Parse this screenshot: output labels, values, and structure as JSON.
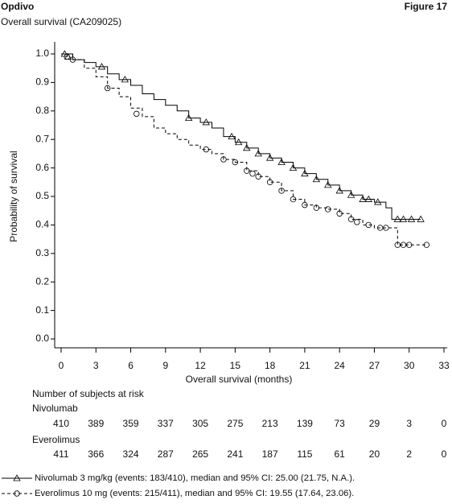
{
  "chart_data": {
    "type": "step",
    "title": "Opdivo",
    "figure_label": "Figure 17",
    "subtitle": "Overall survival (CA209025)",
    "x_label": "Overall survival (months)",
    "y_label": "Probability of survival",
    "xlim": [
      0,
      33
    ],
    "ylim": [
      0,
      1
    ],
    "xticks": [
      0,
      3,
      6,
      9,
      12,
      15,
      18,
      21,
      24,
      27,
      30,
      33
    ],
    "yticks": [
      {
        "value": 0,
        "label": "0.0"
      },
      0.1,
      0.2,
      0.3,
      0.4,
      0.5,
      0.6,
      0.7,
      0.8,
      0.9,
      {
        "value": 1,
        "label": "1.0"
      }
    ],
    "series": [
      {
        "name": "Nivolumab 3 mg/kg (events: 183/410), median and 95% CI: 25.00 (21.75, N.A.).",
        "color": "#000000",
        "dash": "none",
        "marker": "triangle",
        "x": [
          0,
          1,
          2,
          3,
          4,
          5,
          6,
          7,
          8,
          9,
          10,
          11,
          12,
          13,
          14,
          15,
          16,
          17,
          18,
          19,
          20,
          21,
          22,
          23,
          24,
          25,
          26,
          27,
          28,
          28.5,
          31
        ],
        "values": [
          1.0,
          0.98,
          0.97,
          0.955,
          0.93,
          0.91,
          0.89,
          0.86,
          0.84,
          0.82,
          0.8,
          0.775,
          0.76,
          0.74,
          0.71,
          0.69,
          0.67,
          0.65,
          0.635,
          0.62,
          0.6,
          0.58,
          0.56,
          0.54,
          0.52,
          0.505,
          0.49,
          0.48,
          0.46,
          0.42,
          0.42
        ],
        "censor_x": [
          0.3,
          0.6,
          3.5,
          5.5,
          11,
          12.5,
          14.7,
          15.3,
          16,
          17,
          18,
          19,
          20,
          21,
          22,
          23,
          24,
          25,
          26,
          26.5,
          27.3,
          29,
          29.5,
          30.2,
          31
        ],
        "censor_values": [
          1.0,
          0.99,
          0.955,
          0.91,
          0.775,
          0.76,
          0.71,
          0.69,
          0.67,
          0.65,
          0.635,
          0.62,
          0.6,
          0.58,
          0.56,
          0.54,
          0.52,
          0.505,
          0.49,
          0.49,
          0.48,
          0.42,
          0.42,
          0.42,
          0.42
        ]
      },
      {
        "name": "Everolimus 10 mg (events: 215/411), median and 95% CI: 19.55 (17.64, 23.06).",
        "color": "#000000",
        "dash": "4,3",
        "marker": "circle",
        "x": [
          0,
          1,
          2,
          3,
          4,
          5,
          6,
          7,
          8,
          9,
          10,
          11,
          12,
          13,
          14,
          15,
          16,
          17,
          18,
          19,
          20,
          21,
          22,
          23,
          24,
          25,
          26,
          27,
          28,
          29,
          31.5
        ],
        "values": [
          1.0,
          0.98,
          0.95,
          0.92,
          0.88,
          0.85,
          0.81,
          0.78,
          0.74,
          0.72,
          0.7,
          0.68,
          0.665,
          0.65,
          0.63,
          0.62,
          0.59,
          0.57,
          0.55,
          0.52,
          0.49,
          0.47,
          0.46,
          0.455,
          0.44,
          0.42,
          0.4,
          0.39,
          0.39,
          0.33,
          0.33
        ],
        "censor_x": [
          0.5,
          1,
          4,
          6.5,
          12.5,
          14,
          15,
          16,
          16.5,
          17,
          18,
          19,
          20,
          21,
          22,
          23,
          24,
          25,
          25.5,
          26.5,
          27.5,
          28,
          29,
          29.5,
          30,
          31.5
        ],
        "censor_values": [
          0.99,
          0.98,
          0.88,
          0.79,
          0.665,
          0.63,
          0.62,
          0.59,
          0.58,
          0.57,
          0.55,
          0.52,
          0.49,
          0.47,
          0.46,
          0.455,
          0.44,
          0.42,
          0.41,
          0.4,
          0.39,
          0.39,
          0.33,
          0.33,
          0.33,
          0.33
        ]
      }
    ],
    "risk_table": {
      "title": "Number of subjects at risk",
      "x": [
        0,
        3,
        6,
        9,
        12,
        15,
        18,
        21,
        24,
        27,
        30,
        33
      ],
      "rows": [
        {
          "name": "Nivolumab",
          "values": [
            410,
            389,
            359,
            337,
            305,
            275,
            213,
            139,
            73,
            29,
            3,
            0
          ]
        },
        {
          "name": "Everolimus",
          "values": [
            411,
            366,
            324,
            287,
            265,
            241,
            187,
            115,
            61,
            20,
            2,
            0
          ]
        }
      ]
    }
  }
}
